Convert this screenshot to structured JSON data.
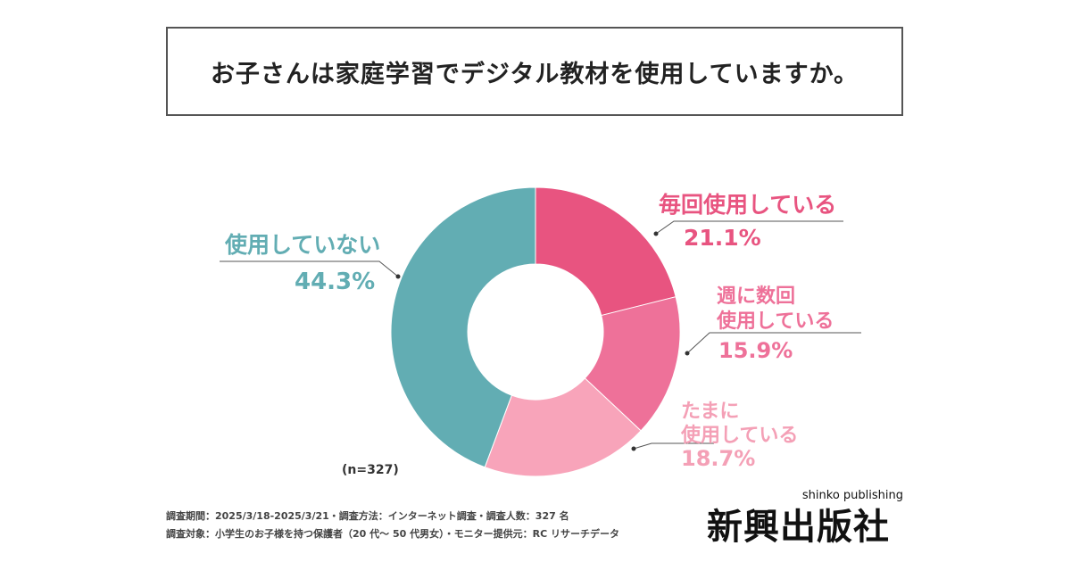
{
  "title": "お子さんは家庭学習でデジタル教材を使用していますか。",
  "chart_data": {
    "type": "pie",
    "donut": true,
    "categories": [
      "毎回使用している",
      "週に数回使用している",
      "たまに使用している",
      "使用していない"
    ],
    "values": [
      21.1,
      15.9,
      18.7,
      44.3
    ],
    "value_labels": [
      "21.1%",
      "15.9%",
      "18.7%",
      "44.3%"
    ],
    "colors": [
      "#E85480",
      "#EE7199",
      "#F8A4BA",
      "#62ADB3"
    ],
    "n_label": "(n=327)"
  },
  "labels": {
    "s0_line1": "毎回使用している",
    "s1_line1": "週に数回",
    "s1_line2": "使用している",
    "s2_line1": "たまに",
    "s2_line2": "使用している",
    "s3_line1": "使用していない"
  },
  "footnotes": [
    "調査期間：2025/3/18-2025/3/21・調査方法：インターネット調査・調査人数：327 名",
    "調査対象：小学生のお子様を持つ保護者（20 代〜 50 代男女）・モニター提供元：RC リサーチデータ"
  ],
  "logo": {
    "main": "新興出版社",
    "sub": "shinko publishing"
  }
}
